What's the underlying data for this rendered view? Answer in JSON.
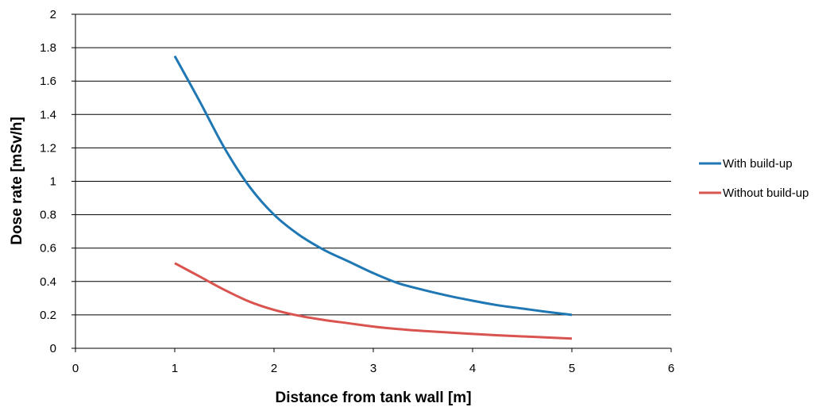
{
  "chart_data": {
    "type": "line",
    "xlabel": "Distance from tank wall [m]",
    "ylabel": "Dose rate [mSv/h]",
    "xlim": [
      0,
      6
    ],
    "ylim": [
      0,
      2
    ],
    "x_ticks": [
      0,
      1,
      2,
      3,
      4,
      5,
      6
    ],
    "y_ticks": [
      0,
      0.2,
      0.4,
      0.6,
      0.8,
      1,
      1.2,
      1.4,
      1.6,
      1.8,
      2
    ],
    "grid": "horizontal",
    "legend_position": "right",
    "series": [
      {
        "name": "With build-up",
        "color": "#1f77b4",
        "points": [
          [
            1,
            1.75
          ],
          [
            1.25,
            1.48
          ],
          [
            1.5,
            1.2
          ],
          [
            1.75,
            0.97
          ],
          [
            2,
            0.8
          ],
          [
            2.25,
            0.68
          ],
          [
            2.5,
            0.59
          ],
          [
            2.75,
            0.52
          ],
          [
            3,
            0.45
          ],
          [
            3.25,
            0.39
          ],
          [
            3.5,
            0.35
          ],
          [
            3.75,
            0.315
          ],
          [
            4,
            0.285
          ],
          [
            4.25,
            0.258
          ],
          [
            4.5,
            0.238
          ],
          [
            4.75,
            0.218
          ],
          [
            5,
            0.2
          ]
        ]
      },
      {
        "name": "Without build-up",
        "color": "#d9534f",
        "points": [
          [
            1,
            0.51
          ],
          [
            1.25,
            0.43
          ],
          [
            1.5,
            0.35
          ],
          [
            1.75,
            0.28
          ],
          [
            2,
            0.23
          ],
          [
            2.25,
            0.195
          ],
          [
            2.5,
            0.17
          ],
          [
            2.75,
            0.15
          ],
          [
            3,
            0.13
          ],
          [
            3.25,
            0.115
          ],
          [
            3.5,
            0.104
          ],
          [
            3.75,
            0.095
          ],
          [
            4,
            0.086
          ],
          [
            4.25,
            0.078
          ],
          [
            4.5,
            0.071
          ],
          [
            4.75,
            0.065
          ],
          [
            5,
            0.058
          ]
        ]
      }
    ]
  }
}
